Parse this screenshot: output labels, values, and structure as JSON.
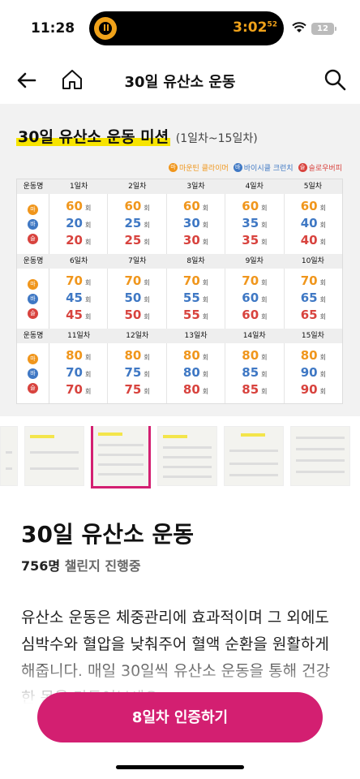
{
  "status": {
    "time": "11:28",
    "timer": "3:02",
    "timer_sec": "52",
    "battery": "12"
  },
  "nav": {
    "title": "30일 유산소 운동"
  },
  "hero": {
    "title": "30일 유산소 운동 미션",
    "range": "(1일차~15일차)",
    "legend": [
      {
        "mark": "마",
        "label": "마운틴 클라이머"
      },
      {
        "mark": "바",
        "label": "바이시클 크런치"
      },
      {
        "mark": "슬",
        "label": "슬로우버피"
      }
    ],
    "col_header": "운동명",
    "unit": "회",
    "marks": [
      "마",
      "바",
      "슬"
    ],
    "blocks": [
      {
        "days": [
          "1일차",
          "2일차",
          "3일차",
          "4일차",
          "5일차"
        ],
        "m": [
          "60",
          "60",
          "60",
          "60",
          "60"
        ],
        "b": [
          "20",
          "25",
          "30",
          "35",
          "40"
        ],
        "s": [
          "20",
          "25",
          "30",
          "35",
          "40"
        ]
      },
      {
        "days": [
          "6일차",
          "7일차",
          "8일차",
          "9일차",
          "10일차"
        ],
        "m": [
          "70",
          "70",
          "70",
          "70",
          "70"
        ],
        "b": [
          "45",
          "50",
          "55",
          "60",
          "65"
        ],
        "s": [
          "45",
          "50",
          "55",
          "60",
          "65"
        ]
      },
      {
        "days": [
          "11일차",
          "12일차",
          "13일차",
          "14일차",
          "15일차"
        ],
        "m": [
          "80",
          "80",
          "80",
          "80",
          "80"
        ],
        "b": [
          "70",
          "75",
          "80",
          "85",
          "90"
        ],
        "s": [
          "70",
          "75",
          "80",
          "85",
          "90"
        ]
      }
    ]
  },
  "challenge": {
    "title": "30일 유산소 운동",
    "count": "756명",
    "count_label": "챌린지 진행중",
    "description": "유산소 운동은 체중관리에 효과적이며 그 외에도 심박수와 혈압을 낮춰주어 혈액 순환을 원활하게 해줍니다. 매일 30일씩 유산소 운동을 통해 건강한 몸을 만들어보세요."
  },
  "cta": {
    "label": "8일차 인증하기"
  },
  "colors": {
    "accent": "#d31f71",
    "m": "#f0961c",
    "b": "#3f78c4",
    "s": "#d8433e"
  }
}
